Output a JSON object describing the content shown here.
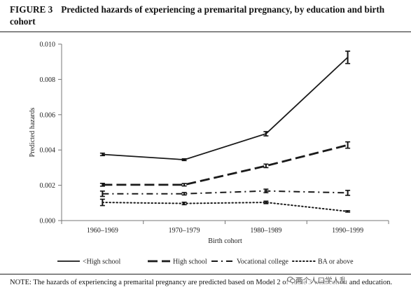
{
  "figure": {
    "label": "FIGURE 3",
    "title": "Predicted hazards of experiencing a premarital pregnancy, by education and birth cohort"
  },
  "note": "NOTE: The hazards of experiencing a premarital pregnancy are predicted based on Model 2 of Table 3 with cohort and education.",
  "watermark": "两个人口学人乱",
  "chart_data": {
    "type": "line",
    "title": "",
    "xlabel": "Birth cohort",
    "ylabel": "Predicted hazards",
    "categories": [
      "1960–1969",
      "1970–1979",
      "1980–1989",
      "1990–1999"
    ],
    "ylim": [
      0,
      0.01
    ],
    "yticks": [
      "0.000",
      "0.002",
      "0.004",
      "0.006",
      "0.008",
      "0.010"
    ],
    "error_bars": true,
    "grid": false,
    "legend_position": "bottom",
    "series": [
      {
        "name": "<High school",
        "style": "solid",
        "values": [
          0.00375,
          0.00345,
          0.00492,
          0.00925
        ],
        "err": [
          7e-05,
          5e-05,
          0.00012,
          0.00035
        ]
      },
      {
        "name": "High school",
        "style": "long-dash",
        "values": [
          0.00203,
          0.00203,
          0.0031,
          0.00428
        ],
        "err": [
          8e-05,
          7e-05,
          0.0001,
          0.00018
        ]
      },
      {
        "name": "Vocational college",
        "style": "dash-dot",
        "values": [
          0.00152,
          0.00152,
          0.00168,
          0.00157
        ],
        "err": [
          0.00015,
          7e-05,
          0.0001,
          0.00014
        ]
      },
      {
        "name": "BA or above",
        "style": "dotted",
        "values": [
          0.00103,
          0.00097,
          0.00103,
          0.00052
        ],
        "err": [
          0.00018,
          7e-05,
          7e-05,
          4e-05
        ]
      }
    ]
  }
}
